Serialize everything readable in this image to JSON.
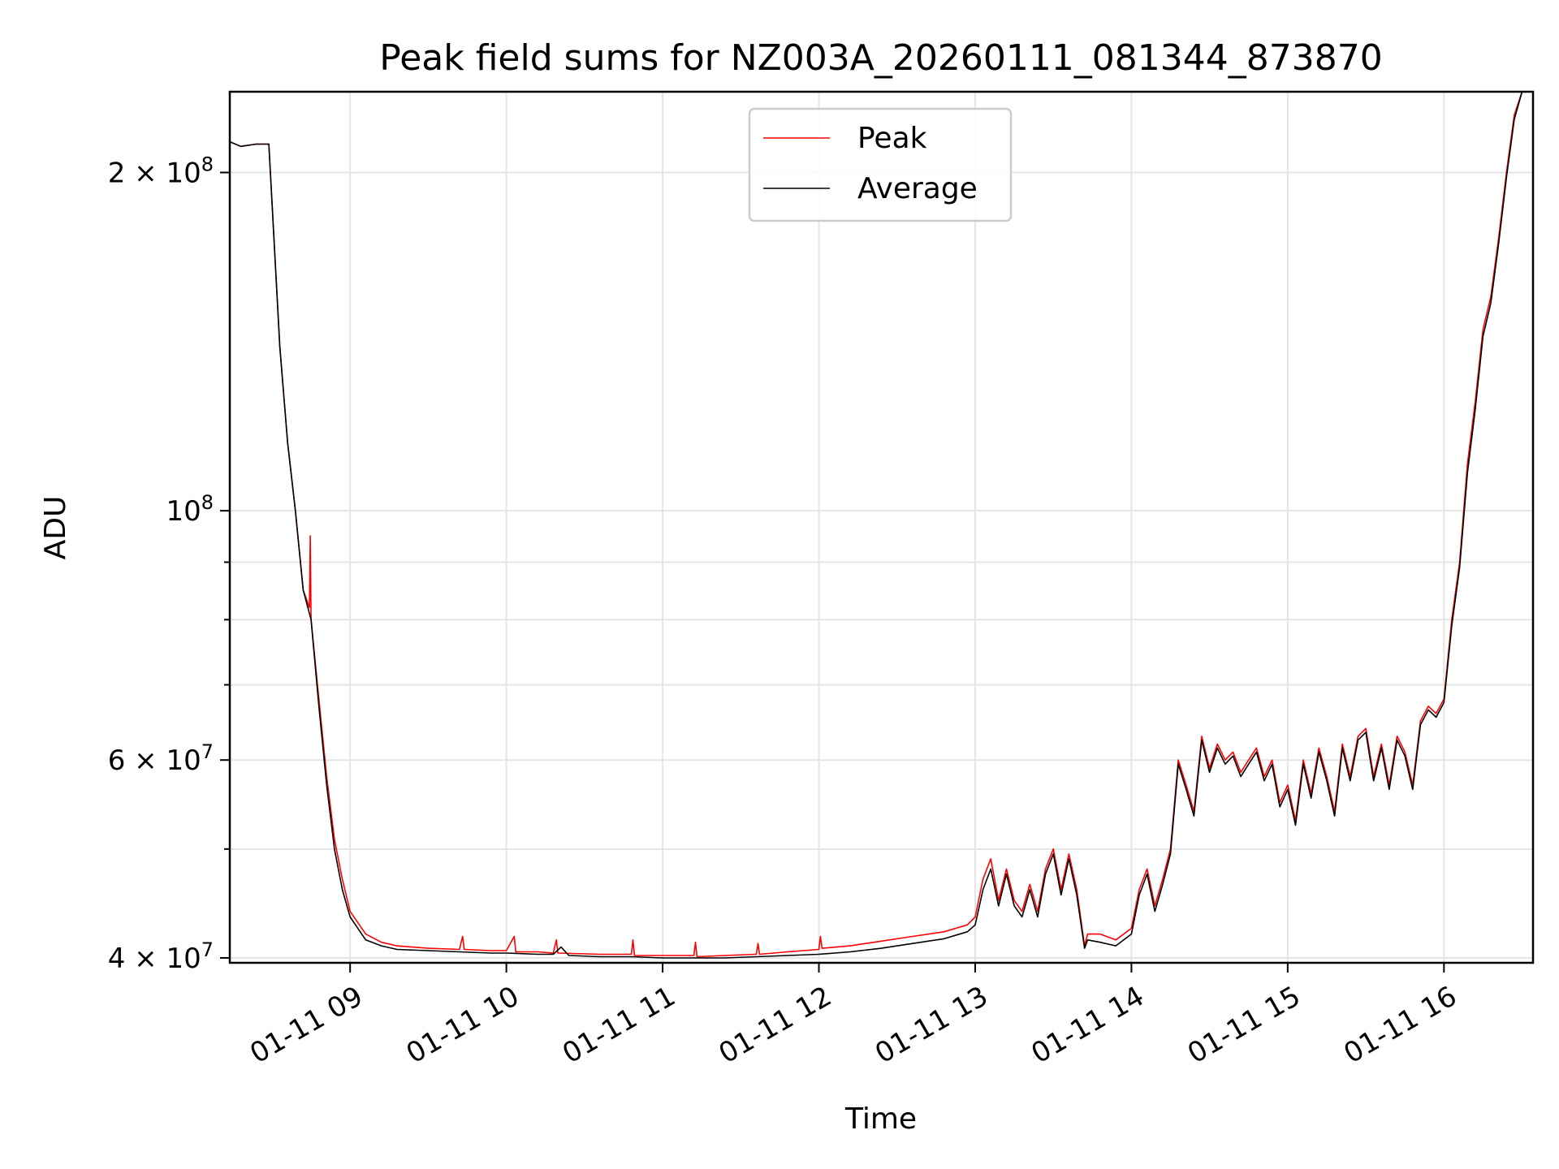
{
  "chart_data": {
    "type": "line",
    "title": "Peak field sums for NZ003A_20260111_081344_873870",
    "xlabel": "Time",
    "ylabel": "ADU",
    "xscale": "time (hours)",
    "yscale": "log",
    "xlim": [
      8.23,
      16.57
    ],
    "ylim": [
      39600000,
      236000000
    ],
    "x_ticks": [
      {
        "value": 9,
        "label": "01-11 09"
      },
      {
        "value": 10,
        "label": "01-11 10"
      },
      {
        "value": 11,
        "label": "01-11 11"
      },
      {
        "value": 12,
        "label": "01-11 12"
      },
      {
        "value": 13,
        "label": "01-11 13"
      },
      {
        "value": 14,
        "label": "01-11 14"
      },
      {
        "value": 15,
        "label": "01-11 15"
      },
      {
        "value": 16,
        "label": "01-11 16"
      }
    ],
    "y_ticks_major": [
      {
        "value": 40000000,
        "base": "4",
        "exp": "7"
      },
      {
        "value": 60000000,
        "base": "6",
        "exp": "7"
      },
      {
        "value": 100000000,
        "base": "10",
        "exp": "8"
      },
      {
        "value": 200000000,
        "base": "2",
        "exp": "8"
      }
    ],
    "y_ticks_minor": [
      50000000,
      70000000,
      80000000,
      90000000
    ],
    "y_tick_times": "×",
    "grid": true,
    "legend_position": "upper center",
    "series": [
      {
        "name": "Peak",
        "color": "#ff0000",
        "x": [
          8.23,
          8.3,
          8.4,
          8.48,
          8.55,
          8.6,
          8.65,
          8.7,
          8.74,
          8.745,
          8.75,
          8.8,
          8.85,
          8.9,
          8.95,
          9.0,
          9.1,
          9.2,
          9.3,
          9.5,
          9.7,
          9.72,
          9.73,
          9.9,
          10.0,
          10.05,
          10.06,
          10.2,
          10.3,
          10.32,
          10.33,
          10.6,
          10.8,
          10.81,
          10.82,
          11.0,
          11.2,
          11.21,
          11.22,
          11.4,
          11.6,
          11.61,
          11.62,
          11.8,
          12.0,
          12.01,
          12.02,
          12.2,
          12.4,
          12.6,
          12.8,
          12.95,
          13.0,
          13.05,
          13.1,
          13.15,
          13.2,
          13.25,
          13.3,
          13.35,
          13.4,
          13.45,
          13.5,
          13.55,
          13.6,
          13.65,
          13.7,
          13.72,
          13.8,
          13.9,
          14.0,
          14.05,
          14.1,
          14.15,
          14.2,
          14.25,
          14.3,
          14.35,
          14.4,
          14.45,
          14.5,
          14.55,
          14.6,
          14.65,
          14.7,
          14.75,
          14.8,
          14.85,
          14.9,
          14.95,
          15.0,
          15.05,
          15.1,
          15.15,
          15.2,
          15.25,
          15.3,
          15.35,
          15.4,
          15.45,
          15.5,
          15.55,
          15.6,
          15.65,
          15.7,
          15.75,
          15.8,
          15.85,
          15.9,
          15.95,
          16.0,
          16.05,
          16.1,
          16.15,
          16.2,
          16.25,
          16.3,
          16.35,
          16.4,
          16.45,
          16.5,
          16.57
        ],
        "y": [
          213000000,
          211000000,
          212000000,
          212000000,
          140000000,
          115000000,
          100000000,
          85000000,
          82000000,
          95000000,
          80000000,
          68000000,
          58000000,
          51000000,
          47000000,
          44000000,
          42000000,
          41300000,
          41000000,
          40800000,
          40700000,
          41800000,
          40700000,
          40600000,
          40600000,
          41800000,
          40500000,
          40500000,
          40400000,
          41500000,
          40400000,
          40300000,
          40300000,
          41500000,
          40200000,
          40200000,
          40200000,
          41300000,
          40100000,
          40200000,
          40300000,
          41200000,
          40300000,
          40500000,
          40700000,
          41800000,
          40800000,
          41000000,
          41400000,
          41800000,
          42200000,
          42800000,
          43500000,
          47000000,
          49000000,
          45000000,
          48000000,
          45000000,
          44000000,
          46500000,
          44000000,
          48000000,
          50000000,
          46000000,
          49500000,
          46000000,
          41000000,
          42000000,
          42000000,
          41500000,
          42500000,
          46000000,
          48000000,
          44500000,
          47000000,
          50000000,
          60000000,
          57000000,
          54000000,
          63000000,
          59000000,
          62000000,
          60000000,
          61000000,
          58500000,
          60000000,
          61500000,
          58000000,
          60000000,
          55000000,
          57000000,
          53000000,
          60000000,
          56000000,
          61500000,
          58000000,
          54000000,
          62000000,
          58000000,
          63000000,
          64000000,
          58000000,
          62000000,
          57000000,
          63000000,
          61000000,
          57000000,
          65000000,
          67000000,
          66000000,
          68000000,
          80000000,
          90000000,
          110000000,
          125000000,
          145000000,
          155000000,
          175000000,
          200000000,
          225000000,
          236000000,
          236000000
        ]
      },
      {
        "name": "Average",
        "color": "#000000",
        "x": [
          8.23,
          8.3,
          8.4,
          8.48,
          8.55,
          8.6,
          8.65,
          8.7,
          8.75,
          8.8,
          8.85,
          8.9,
          8.95,
          9.0,
          9.1,
          9.2,
          9.3,
          9.5,
          9.7,
          9.9,
          10.0,
          10.2,
          10.3,
          10.35,
          10.4,
          10.6,
          10.8,
          11.0,
          11.2,
          11.4,
          11.6,
          11.8,
          12.0,
          12.2,
          12.4,
          12.6,
          12.8,
          12.95,
          13.0,
          13.05,
          13.1,
          13.15,
          13.2,
          13.25,
          13.3,
          13.35,
          13.4,
          13.45,
          13.5,
          13.55,
          13.6,
          13.65,
          13.7,
          13.72,
          13.8,
          13.9,
          14.0,
          14.05,
          14.1,
          14.15,
          14.2,
          14.25,
          14.3,
          14.35,
          14.4,
          14.45,
          14.5,
          14.55,
          14.6,
          14.65,
          14.7,
          14.75,
          14.8,
          14.85,
          14.9,
          14.95,
          15.0,
          15.05,
          15.1,
          15.15,
          15.2,
          15.25,
          15.3,
          15.35,
          15.4,
          15.45,
          15.5,
          15.55,
          15.6,
          15.65,
          15.7,
          15.75,
          15.8,
          15.85,
          15.9,
          15.95,
          16.0,
          16.05,
          16.1,
          16.15,
          16.2,
          16.25,
          16.3,
          16.35,
          16.4,
          16.45,
          16.5,
          16.57
        ],
        "y": [
          213000000,
          211000000,
          212000000,
          212000000,
          140000000,
          115000000,
          100000000,
          85000000,
          80000000,
          67000000,
          57000000,
          50000000,
          46000000,
          43500000,
          41500000,
          41000000,
          40700000,
          40600000,
          40500000,
          40400000,
          40400000,
          40300000,
          40300000,
          40900000,
          40200000,
          40100000,
          40100000,
          40000000,
          40000000,
          40000000,
          40100000,
          40200000,
          40300000,
          40500000,
          40800000,
          41200000,
          41600000,
          42200000,
          42800000,
          46000000,
          48000000,
          44500000,
          47500000,
          44500000,
          43500000,
          46000000,
          43500000,
          47500000,
          49500000,
          45500000,
          49000000,
          45500000,
          40800000,
          41500000,
          41300000,
          41000000,
          42000000,
          45500000,
          47500000,
          44000000,
          46500000,
          49500000,
          59500000,
          56500000,
          53500000,
          62500000,
          58500000,
          61500000,
          59500000,
          60500000,
          58000000,
          59500000,
          61000000,
          57500000,
          59500000,
          54500000,
          56500000,
          52500000,
          59500000,
          55500000,
          61000000,
          57500000,
          53500000,
          61500000,
          57500000,
          62500000,
          63500000,
          57500000,
          61500000,
          56500000,
          62500000,
          60500000,
          56500000,
          64500000,
          66500000,
          65500000,
          67500000,
          79000000,
          89000000,
          108000000,
          123000000,
          143000000,
          153000000,
          173000000,
          198000000,
          223000000,
          236000000,
          236000000
        ]
      }
    ]
  }
}
